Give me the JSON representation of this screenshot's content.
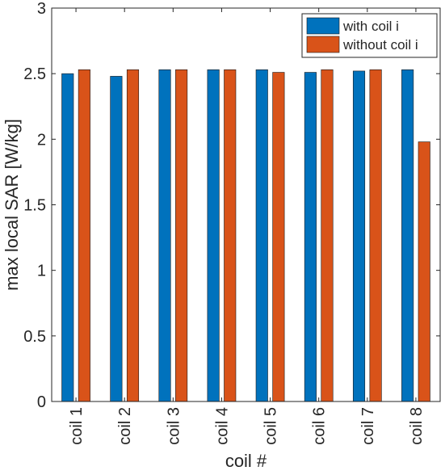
{
  "chart_data": {
    "type": "bar",
    "title": "",
    "xlabel": "coil #",
    "ylabel": "max local SAR [W/kg]",
    "ylim": [
      0,
      3
    ],
    "yticks": [
      0,
      0.5,
      1,
      1.5,
      2,
      2.5,
      3
    ],
    "ytick_labels": [
      "0",
      "0.5",
      "1",
      "1.5",
      "2",
      "2.5",
      "3"
    ],
    "categories": [
      "coil 1",
      "coil 2",
      "coil 3",
      "coil 4",
      "coil 5",
      "coil 6",
      "coil 7",
      "coil 8"
    ],
    "series": [
      {
        "name": "with coil i",
        "color": "#0072BD",
        "values": [
          2.5,
          2.48,
          2.53,
          2.53,
          2.53,
          2.51,
          2.52,
          2.53
        ]
      },
      {
        "name": "without coil i",
        "color": "#D95319",
        "values": [
          2.53,
          2.53,
          2.53,
          2.53,
          2.51,
          2.53,
          2.53,
          1.98
        ]
      }
    ],
    "legend_position": "top-right",
    "grid": false
  }
}
